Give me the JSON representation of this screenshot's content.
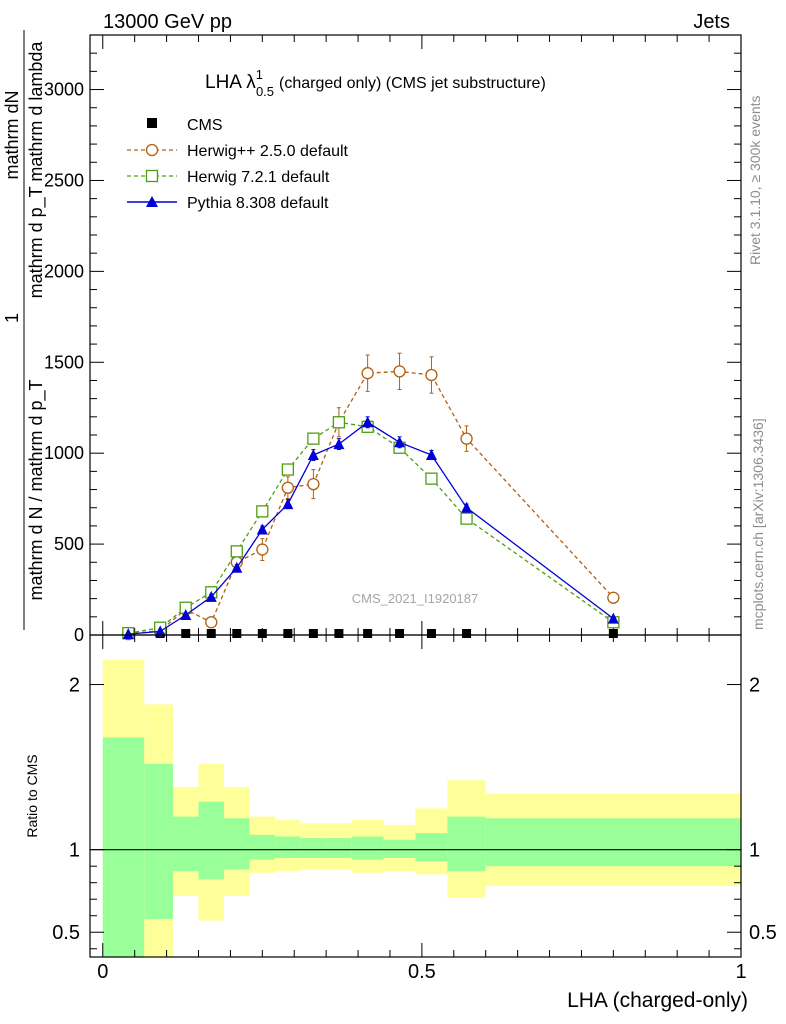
{
  "header": {
    "energy": "13000 GeV pp",
    "category": "Jets"
  },
  "side": {
    "rivet": "Rivet 3.1.10, ≥ 300k events",
    "mcplots": "mcplots.cern.ch [arXiv:1306.3436]"
  },
  "chart_data": [
    {
      "type": "line",
      "title": "LHA λ",
      "title_sup": "1",
      "title_sub": "0.5",
      "title_rest": "(charged only) (CMS jet substructure)",
      "ylabel_num": "mathrm dN",
      "ylabel_mid": "mathrm d p_T mathrm d lambda",
      "ylabel_den": "mathrm d N / mathrm d p_T",
      "ylabel_one": "1",
      "ylim": [
        0,
        3300
      ],
      "yticks": [
        0,
        500,
        1000,
        1500,
        2000,
        2500,
        3000
      ],
      "ytick_labels": [
        "0",
        "500",
        "1000",
        "1500",
        "2000",
        "2500",
        "3000"
      ],
      "xlim": [
        -0.02,
        1.0
      ],
      "watermark": "CMS_2021_I1920187",
      "legend": [
        "CMS",
        "Herwig++ 2.5.0 default",
        "Herwig 7.2.1 default",
        "Pythia 8.308 default"
      ],
      "series": [
        {
          "name": "CMS",
          "color": "#000000",
          "marker": "filled-square",
          "x": [
            0.04,
            0.09,
            0.13,
            0.17,
            0.21,
            0.25,
            0.29,
            0.33,
            0.37,
            0.415,
            0.465,
            0.515,
            0.57,
            0.8
          ],
          "y": [
            0,
            0,
            0,
            0,
            0,
            0,
            0,
            0,
            0,
            0,
            0,
            0,
            0,
            0
          ]
        },
        {
          "name": "Herwig++ 2.5.0 default",
          "color": "#b25f10",
          "marker": "open-circle",
          "dash": "4,3",
          "x": [
            0.04,
            0.09,
            0.13,
            0.17,
            0.21,
            0.25,
            0.29,
            0.33,
            0.37,
            0.415,
            0.465,
            0.515,
            0.57,
            0.8
          ],
          "y": [
            5,
            25,
            140,
            70,
            400,
            470,
            810,
            830,
            1170,
            1440,
            1450,
            1430,
            1080,
            205
          ],
          "err": [
            2,
            5,
            20,
            30,
            50,
            60,
            60,
            80,
            80,
            100,
            100,
            100,
            70,
            20
          ]
        },
        {
          "name": "Herwig 7.2.1 default",
          "color": "#4f9e14",
          "marker": "open-square",
          "dash": "4,3",
          "x": [
            0.04,
            0.09,
            0.13,
            0.17,
            0.21,
            0.25,
            0.29,
            0.33,
            0.37,
            0.415,
            0.465,
            0.515,
            0.57,
            0.8
          ],
          "y": [
            10,
            40,
            150,
            235,
            460,
            680,
            910,
            1080,
            1170,
            1145,
            1030,
            860,
            640,
            70
          ],
          "err": [
            2,
            5,
            10,
            15,
            20,
            25,
            30,
            30,
            30,
            30,
            30,
            25,
            20,
            8
          ]
        },
        {
          "name": "Pythia 8.308 default",
          "color": "#0000d6",
          "marker": "filled-triangle",
          "x": [
            0.04,
            0.09,
            0.13,
            0.17,
            0.21,
            0.25,
            0.29,
            0.33,
            0.37,
            0.415,
            0.465,
            0.515,
            0.57,
            0.8
          ],
          "y": [
            5,
            20,
            110,
            210,
            370,
            580,
            720,
            990,
            1050,
            1170,
            1060,
            990,
            700,
            90
          ],
          "err": [
            2,
            4,
            8,
            12,
            15,
            20,
            25,
            30,
            30,
            30,
            30,
            25,
            20,
            8
          ]
        }
      ]
    },
    {
      "type": "area",
      "ylabel": "Ratio to CMS",
      "xlabel": "LHA (charged-only)",
      "ylim": [
        0.35,
        2.3
      ],
      "yticks": [
        0.5,
        1,
        2
      ],
      "ytick_labels": [
        "0.5",
        "1",
        "2"
      ],
      "xlim": [
        -0.02,
        1.0
      ],
      "xticks": [
        0,
        0.5,
        1
      ],
      "xtick_labels": [
        "0",
        "0.5",
        "1"
      ],
      "reference_line": 1,
      "bins": [
        [
          0.0,
          0.065,
          0.2,
          2.15,
          0.2,
          1.68
        ],
        [
          0.065,
          0.11,
          0.2,
          1.88,
          0.58,
          1.52
        ],
        [
          0.11,
          0.15,
          0.72,
          1.38,
          0.87,
          1.2
        ],
        [
          0.15,
          0.19,
          0.57,
          1.52,
          0.82,
          1.29
        ],
        [
          0.19,
          0.23,
          0.72,
          1.38,
          0.88,
          1.19
        ],
        [
          0.23,
          0.27,
          0.86,
          1.2,
          0.94,
          1.09
        ],
        [
          0.27,
          0.31,
          0.87,
          1.18,
          0.95,
          1.08
        ],
        [
          0.31,
          0.35,
          0.88,
          1.16,
          0.95,
          1.07
        ],
        [
          0.35,
          0.39,
          0.88,
          1.16,
          0.95,
          1.07
        ],
        [
          0.39,
          0.44,
          0.86,
          1.18,
          0.94,
          1.08
        ],
        [
          0.44,
          0.49,
          0.87,
          1.15,
          0.95,
          1.06
        ],
        [
          0.49,
          0.54,
          0.85,
          1.25,
          0.93,
          1.1
        ],
        [
          0.54,
          0.6,
          0.71,
          1.42,
          0.87,
          1.2
        ],
        [
          0.6,
          1.0,
          0.78,
          1.34,
          0.9,
          1.19
        ]
      ],
      "band_colors": {
        "outer": "#ffff99",
        "inner": "#99ff99"
      }
    }
  ]
}
